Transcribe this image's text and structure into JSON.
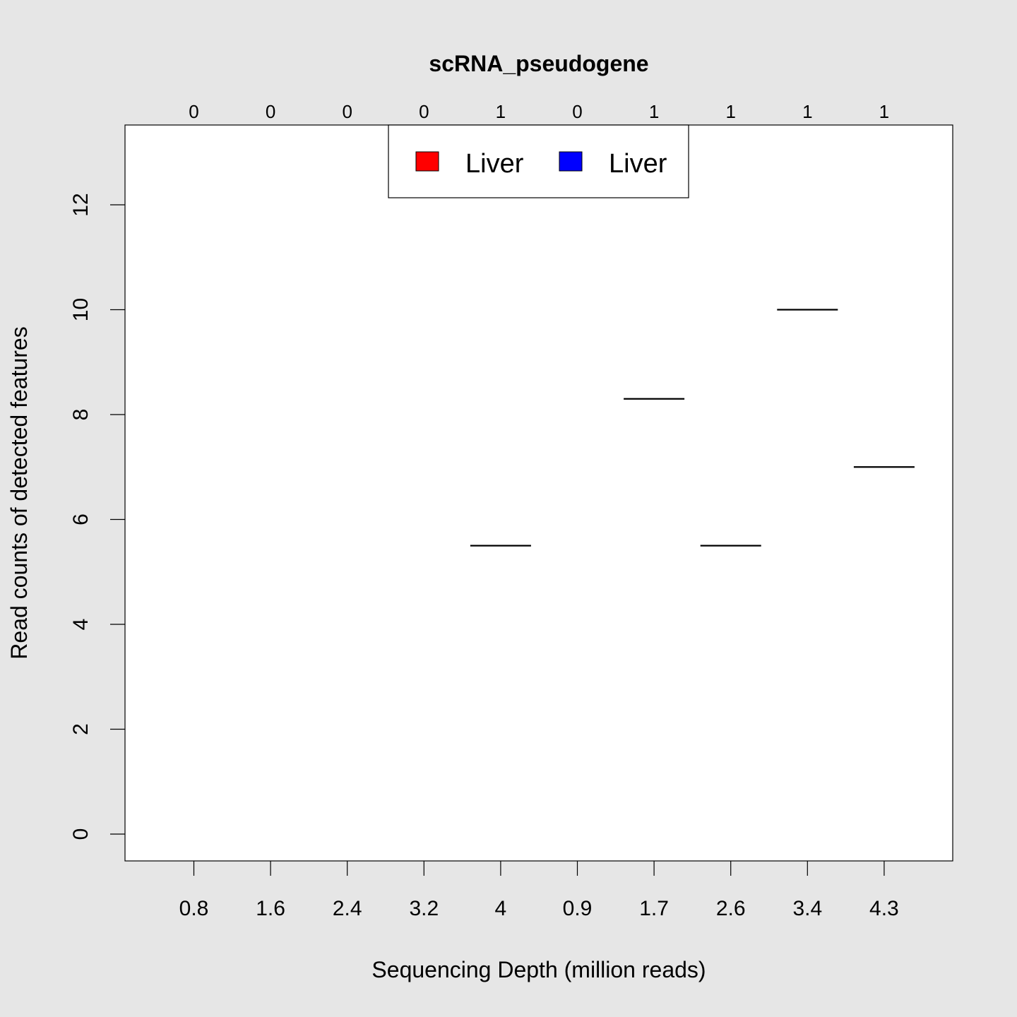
{
  "chart_data": {
    "type": "box",
    "title": "scRNA_pseudogene",
    "xlabel": "Sequencing Depth (million reads)",
    "ylabel": "Read counts of detected features",
    "categories": [
      "0.8",
      "1.6",
      "2.4",
      "3.2",
      "4",
      "0.9",
      "1.7",
      "2.6",
      "3.4",
      "4.3"
    ],
    "top_labels": [
      "0",
      "0",
      "0",
      "0",
      "1",
      "0",
      "1",
      "1",
      "1",
      "1"
    ],
    "values": [
      null,
      null,
      null,
      null,
      5.5,
      null,
      8.3,
      5.5,
      10,
      7
    ],
    "yticks": [
      0,
      2,
      4,
      6,
      8,
      10,
      12
    ],
    "ylim": [
      -0.5,
      13.5
    ],
    "grid": false,
    "legend": {
      "placement": "top-center",
      "entries": [
        {
          "label": "Liver",
          "color": "#ff0000"
        },
        {
          "label": "Liver",
          "color": "#0000ff"
        }
      ]
    }
  }
}
